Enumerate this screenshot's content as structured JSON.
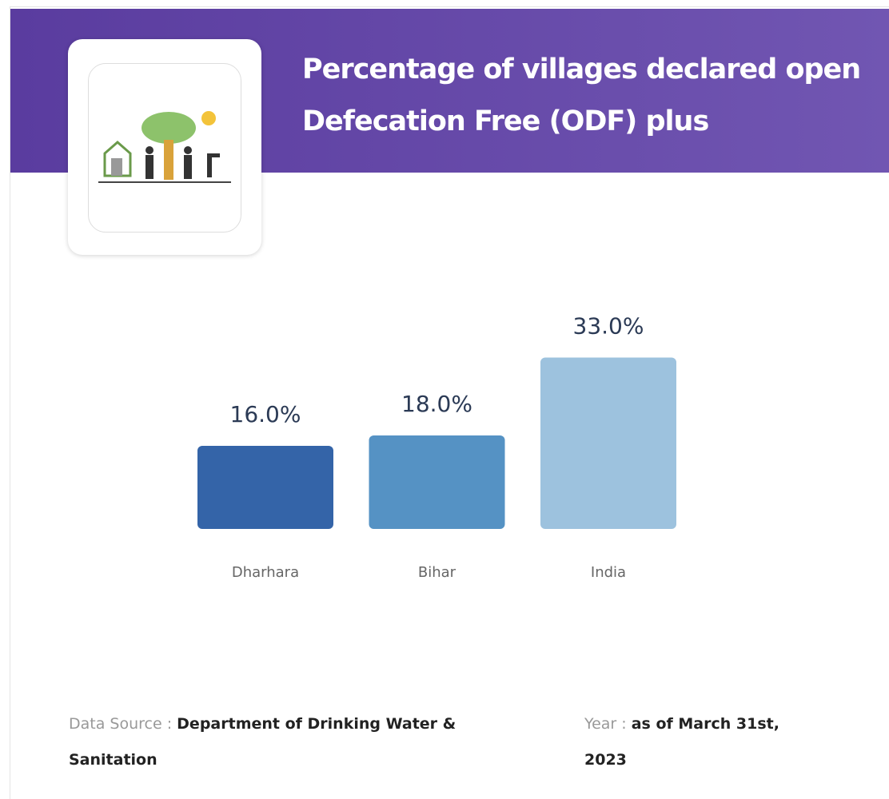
{
  "chart_data": {
    "type": "bar",
    "title": "Percentage of villages declared open Defecation Free (ODF) plus",
    "categories": [
      "Dharhara",
      "Bihar",
      "India"
    ],
    "values": [
      16,
      18,
      33
    ],
    "value_labels": [
      "16.0%",
      "18.0%",
      "33.0%"
    ],
    "colors": [
      "#3464a8",
      "#5592c4",
      "#9dc2de"
    ]
  },
  "footer": {
    "source_label": "Data Source :",
    "source": "Department of Drinking Water & Sanitation",
    "year_label": "Year :",
    "year": "as of March 31st, 2023"
  }
}
